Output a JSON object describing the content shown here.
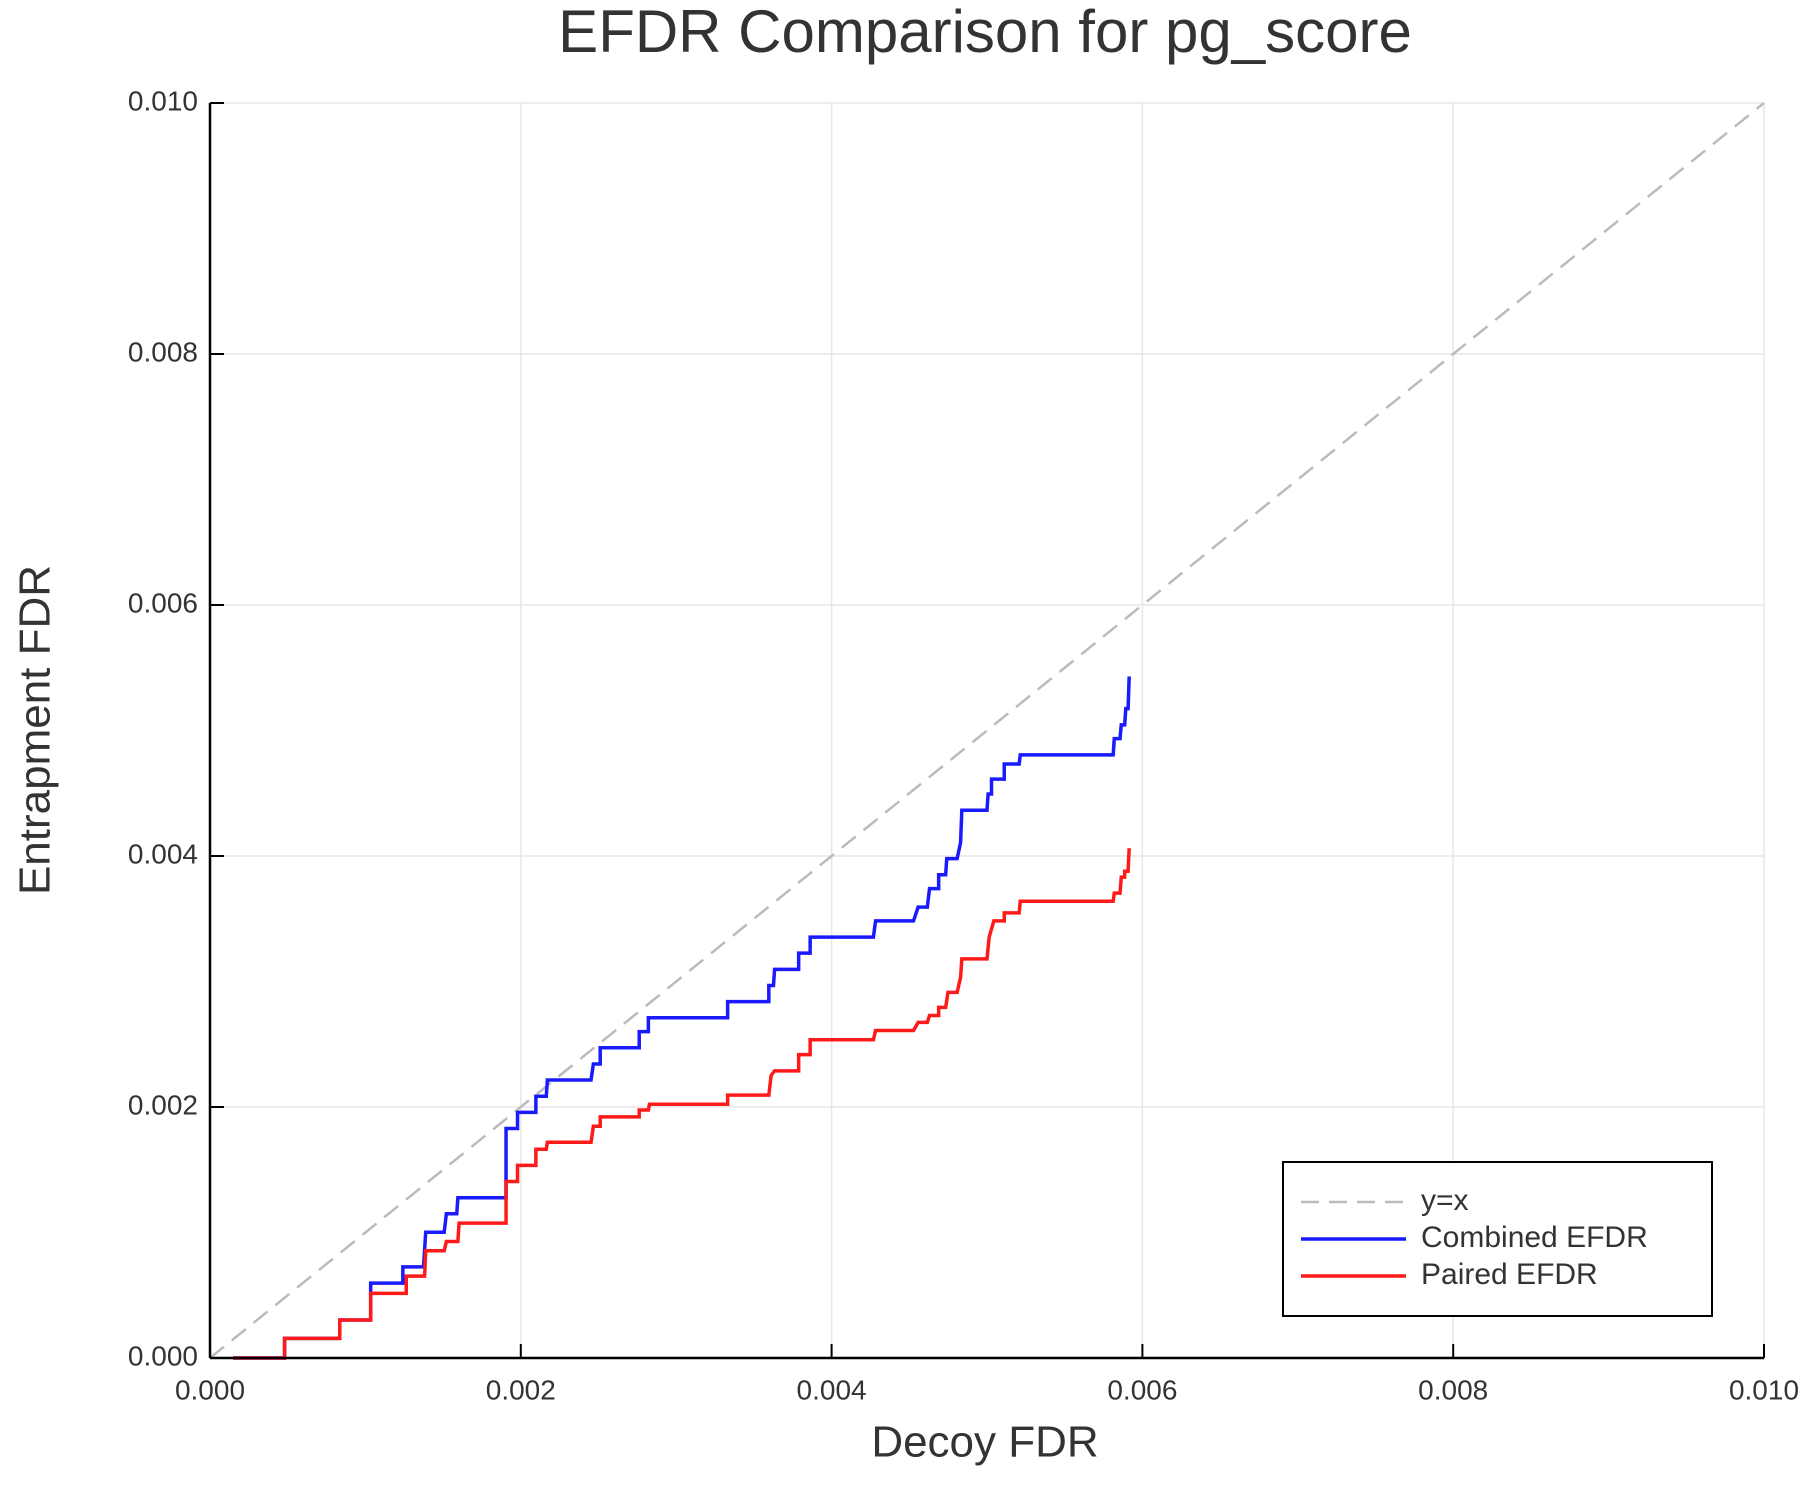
{
  "chart_data": {
    "type": "line",
    "title": "EFDR Comparison for pg_score",
    "xlabel": "Decoy FDR",
    "ylabel": "Entrapment FDR",
    "xlim": [
      0,
      0.01
    ],
    "ylim": [
      0,
      0.01
    ],
    "xticks": [
      {
        "value": 0,
        "label": "0.000"
      },
      {
        "value": 0.002,
        "label": "0.002"
      },
      {
        "value": 0.004,
        "label": "0.004"
      },
      {
        "value": 0.006,
        "label": "0.006"
      },
      {
        "value": 0.008,
        "label": "0.008"
      },
      {
        "value": 0.01,
        "label": "0.010"
      }
    ],
    "yticks": [
      {
        "value": 0,
        "label": "0.000"
      },
      {
        "value": 0.002,
        "label": "0.002"
      },
      {
        "value": 0.004,
        "label": "0.004"
      },
      {
        "value": 0.006,
        "label": "0.006"
      },
      {
        "value": 0.008,
        "label": "0.008"
      },
      {
        "value": 0.01,
        "label": "0.010"
      }
    ],
    "grid": true,
    "legend": "bottom-right",
    "series": [
      {
        "name": "y=x",
        "color": "#bbbbbb",
        "dashed": true,
        "x": [
          0,
          0.01
        ],
        "values": [
          0,
          0.01
        ]
      },
      {
        "name": "Combined EFDR",
        "color": "#1a1aff",
        "dashed": false,
        "x": [
          0.000148,
          0.00048,
          0.00048,
          0.000835,
          0.000835,
          0.001034,
          0.001034,
          0.001241,
          0.001241,
          0.001374,
          0.001388,
          0.001507,
          0.001521,
          0.001588,
          0.001595,
          0.001905,
          0.001905,
          0.001979,
          0.001979,
          0.002097,
          0.002097,
          0.002164,
          0.002171,
          0.002452,
          0.002467,
          0.002511,
          0.002511,
          0.002762,
          0.002762,
          0.002821,
          0.002821,
          0.003331,
          0.003331,
          0.003596,
          0.003596,
          0.003626,
          0.003633,
          0.003788,
          0.003788,
          0.003862,
          0.003862,
          0.004269,
          0.004283,
          0.004527,
          0.004557,
          0.004616,
          0.00463,
          0.004689,
          0.004689,
          0.004734,
          0.004741,
          0.004808,
          0.00483,
          0.004838,
          0.005,
          0.005007,
          0.005029,
          0.005029,
          0.005111,
          0.005111,
          0.005207,
          0.005214,
          0.005812,
          0.005819,
          0.005856,
          0.005864,
          0.005886,
          0.005893,
          0.005908,
          0.005915
        ],
        "values": [
          0,
          0,
          0.000156,
          0.000156,
          0.000303,
          0.000303,
          0.000597,
          0.000597,
          0.000726,
          0.000726,
          0.001002,
          0.001002,
          0.001149,
          0.001149,
          0.001277,
          0.001277,
          0.001829,
          0.001829,
          0.001957,
          0.001957,
          0.002086,
          0.002086,
          0.002215,
          0.002215,
          0.002343,
          0.002343,
          0.002472,
          0.002472,
          0.002601,
          0.002601,
          0.002711,
          0.002711,
          0.00284,
          0.00284,
          0.002968,
          0.002968,
          0.003097,
          0.003097,
          0.003226,
          0.003226,
          0.003354,
          0.003354,
          0.003483,
          0.003483,
          0.003593,
          0.003593,
          0.00374,
          0.00374,
          0.003851,
          0.003851,
          0.003979,
          0.003979,
          0.004108,
          0.004365,
          0.004365,
          0.004494,
          0.004494,
          0.004613,
          0.004613,
          0.004733,
          0.004733,
          0.004806,
          0.004806,
          0.004935,
          0.004935,
          0.005045,
          0.005045,
          0.005174,
          0.005174,
          0.005431
        ]
      },
      {
        "name": "Paired EFDR",
        "color": "#ff1a1a",
        "dashed": false,
        "x": [
          0.000148,
          0.00048,
          0.00048,
          0.000835,
          0.000835,
          0.001034,
          0.001034,
          0.001263,
          0.001263,
          0.001381,
          0.001388,
          0.001507,
          0.001521,
          0.001595,
          0.001603,
          0.001905,
          0.001905,
          0.001979,
          0.001979,
          0.002097,
          0.002097,
          0.002164,
          0.002171,
          0.002452,
          0.002467,
          0.002511,
          0.002511,
          0.002762,
          0.002762,
          0.002821,
          0.002828,
          0.003331,
          0.003331,
          0.003596,
          0.003611,
          0.003633,
          0.003788,
          0.003788,
          0.003862,
          0.003862,
          0.004269,
          0.004283,
          0.004527,
          0.004557,
          0.004616,
          0.00463,
          0.004689,
          0.004689,
          0.004734,
          0.004749,
          0.004808,
          0.00483,
          0.004838,
          0.005,
          0.005014,
          0.005044,
          0.005111,
          0.005111,
          0.005207,
          0.005214,
          0.005812,
          0.005819,
          0.005856,
          0.005864,
          0.005886,
          0.005886,
          0.005908,
          0.005915
        ],
        "values": [
          0,
          0,
          0.000156,
          0.000156,
          0.000303,
          0.000303,
          0.000515,
          0.000515,
          0.000652,
          0.000652,
          0.000855,
          0.000855,
          0.000928,
          0.000928,
          0.001075,
          0.001075,
          0.001406,
          0.001406,
          0.001535,
          0.001535,
          0.001663,
          0.001663,
          0.001719,
          0.001719,
          0.001847,
          0.001847,
          0.001921,
          0.001921,
          0.001976,
          0.001976,
          0.002022,
          0.002022,
          0.002095,
          0.002095,
          0.002252,
          0.002288,
          0.002288,
          0.002417,
          0.002417,
          0.002536,
          0.002536,
          0.00261,
          0.00261,
          0.002674,
          0.002674,
          0.002729,
          0.002729,
          0.002794,
          0.002794,
          0.002913,
          0.002913,
          0.003033,
          0.00318,
          0.00318,
          0.003354,
          0.003483,
          0.003483,
          0.003547,
          0.003547,
          0.003639,
          0.003639,
          0.003704,
          0.003704,
          0.003832,
          0.003832,
          0.003878,
          0.003878,
          0.004062
        ]
      }
    ]
  }
}
